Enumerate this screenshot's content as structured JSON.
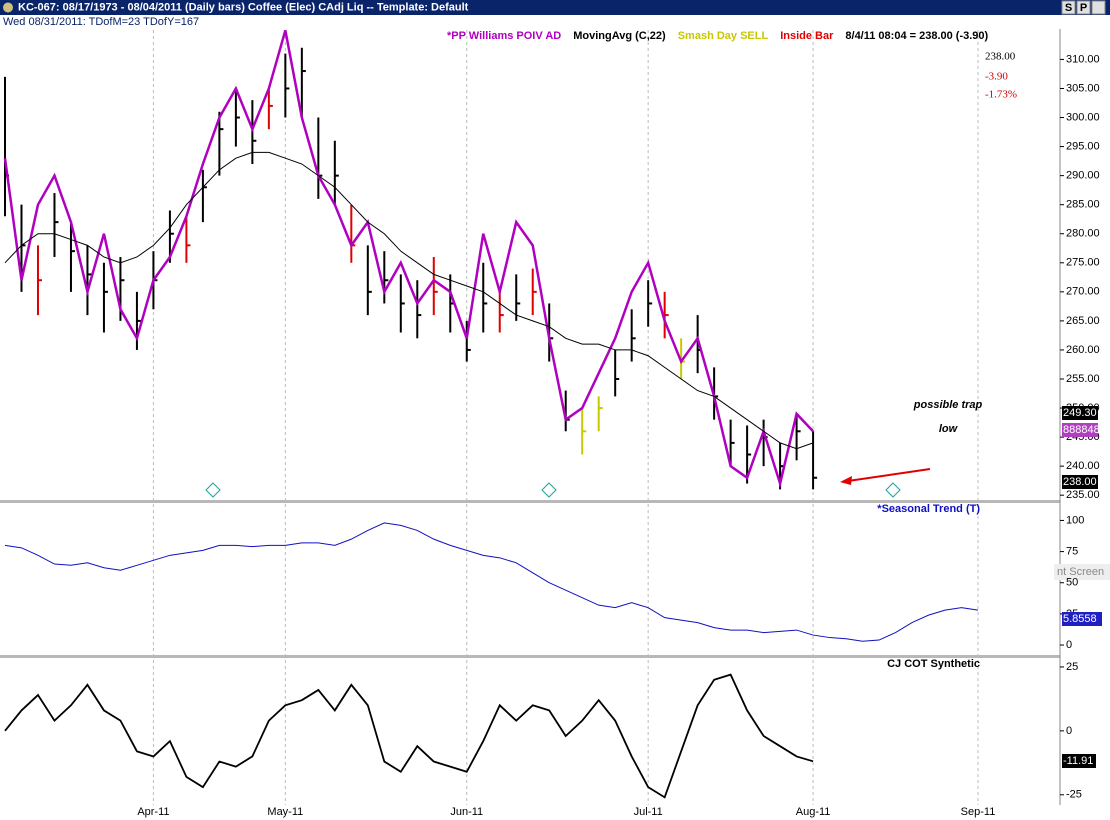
{
  "window": {
    "title": "KC-067:  08/17/1973 - 08/04/2011  (Daily bars)   Coffee (Elec) CAdj Liq  --  Template: Default",
    "status": "Wed 08/31/2011:  TDofM=23  TDofY=167",
    "buttons": [
      "S",
      "P"
    ],
    "overlay_text": "nt Screen"
  },
  "chart_data": [
    {
      "type": "ohlc",
      "legend": [
        "*PP Williams POIV AD",
        "MovingAvg (C,22)",
        "Smash Day SELL",
        "Inside Bar",
        "8/4/11 08:04 = 238.00 (-3.90)"
      ],
      "legend_colors": [
        "#b000c0",
        "#000000",
        "#c8c800",
        "#e00000",
        "#000000"
      ],
      "last": "238.00",
      "change": "-3.90",
      "change_pct": "-1.73%",
      "annotation": "possible trap low",
      "side_labels": [
        "249.30",
        "888848",
        "238.00"
      ],
      "high": [
        307,
        285,
        278,
        287,
        282,
        278,
        275,
        276,
        270,
        277,
        284,
        283,
        291,
        301,
        305,
        303,
        305,
        311,
        312,
        300,
        296,
        285,
        278,
        277,
        273,
        272,
        276,
        273,
        265,
        275,
        270,
        273,
        274,
        268,
        253,
        250,
        252,
        260,
        267,
        272,
        270,
        262,
        266,
        257,
        248,
        247,
        248,
        244,
        249,
        246,
        null,
        null,
        null,
        null,
        null,
        null,
        null,
        null,
        null,
        null
      ],
      "low": [
        283,
        270,
        266,
        276,
        270,
        266,
        263,
        265,
        260,
        267,
        275,
        275,
        282,
        290,
        295,
        292,
        298,
        300,
        300,
        286,
        285,
        275,
        266,
        268,
        263,
        262,
        266,
        263,
        258,
        263,
        263,
        265,
        266,
        258,
        246,
        242,
        246,
        252,
        258,
        264,
        262,
        255,
        256,
        248,
        240,
        237,
        240,
        236,
        241,
        236,
        null,
        null,
        null,
        null,
        null,
        null,
        null,
        null,
        null,
        null
      ],
      "close": [
        290,
        278,
        272,
        282,
        277,
        273,
        270,
        272,
        265,
        272,
        280,
        278,
        288,
        298,
        300,
        296,
        302,
        305,
        308,
        290,
        290,
        278,
        270,
        272,
        268,
        266,
        270,
        268,
        260,
        268,
        266,
        268,
        270,
        262,
        248,
        246,
        250,
        255,
        262,
        268,
        266,
        258,
        260,
        252,
        244,
        242,
        245,
        240,
        246,
        238,
        null,
        null,
        null,
        null,
        null,
        null,
        null,
        null,
        null,
        null
      ],
      "bar_colors": [
        "#000",
        "#000",
        "#e00000",
        "#000",
        "#000",
        "#000",
        "#000",
        "#000",
        "#000",
        "#000",
        "#000",
        "#e00000",
        "#000",
        "#000",
        "#000",
        "#000",
        "#e00000",
        "#000",
        "#000",
        "#000",
        "#000",
        "#e00000",
        "#000",
        "#000",
        "#000",
        "#000",
        "#e00000",
        "#000",
        "#000",
        "#000",
        "#e00000",
        "#000",
        "#e00000",
        "#000",
        "#000",
        "#c8c800",
        "#c8c800",
        "#000",
        "#000",
        "#000",
        "#e00000",
        "#c8c800",
        "#000",
        "#000",
        "#000",
        "#000",
        "#000",
        "#000",
        "#000",
        "#000",
        null,
        null,
        null,
        null,
        null,
        null,
        null,
        null,
        null,
        null
      ],
      "series": [
        {
          "name": "*PP Williams POIV AD",
          "color": "#b000c0",
          "values": [
            293,
            272,
            285,
            290,
            282,
            270,
            280,
            267,
            262,
            272,
            276,
            283,
            292,
            300,
            305,
            298,
            305,
            315,
            300,
            290,
            285,
            278,
            282,
            270,
            275,
            268,
            272,
            270,
            262,
            280,
            270,
            282,
            278,
            262,
            248,
            250,
            256,
            262,
            270,
            275,
            265,
            258,
            262,
            252,
            240,
            238,
            246,
            237,
            249,
            246,
            null,
            null,
            null,
            null,
            null,
            null,
            null,
            null,
            null,
            null
          ]
        },
        {
          "name": "MovingAvg (C,22)",
          "color": "#000000",
          "values": [
            275,
            278,
            280,
            280,
            279,
            278,
            276,
            275,
            276,
            278,
            281,
            285,
            288,
            291,
            293,
            294,
            294,
            293,
            292,
            290,
            288,
            285,
            282,
            280,
            277,
            275,
            273,
            272,
            271,
            270,
            268,
            266,
            265,
            264,
            262,
            261,
            261,
            260,
            260,
            259,
            257,
            255,
            253,
            252,
            250,
            248,
            246,
            244,
            243,
            244,
            null,
            null,
            null,
            null,
            null,
            null,
            null,
            null,
            null,
            null
          ]
        }
      ],
      "ylim": [
        234,
        313
      ],
      "yticks": [
        {
          "value": 235,
          "label": "235.00"
        },
        {
          "value": 240,
          "label": "240.00"
        },
        {
          "value": 245,
          "label": "245.00"
        },
        {
          "value": 250,
          "label": "250.00"
        },
        {
          "value": 255,
          "label": "255.00"
        },
        {
          "value": 260,
          "label": "260.00"
        },
        {
          "value": 265,
          "label": "265.00"
        },
        {
          "value": 270,
          "label": "270.00"
        },
        {
          "value": 275,
          "label": "275.00"
        },
        {
          "value": 280,
          "label": "280.00"
        },
        {
          "value": 285,
          "label": "285.00"
        },
        {
          "value": 290,
          "label": "290.00"
        },
        {
          "value": 295,
          "label": "295.00"
        },
        {
          "value": 300,
          "label": "300.00"
        },
        {
          "value": 305,
          "label": "305.00"
        },
        {
          "value": 310,
          "label": "310.00"
        }
      ]
    },
    {
      "type": "line",
      "title": "*Seasonal Trend (T)",
      "side_label": "5.8558",
      "series": [
        {
          "name": "*Seasonal Trend (T)",
          "color": "#1010c0",
          "values": [
            80,
            78,
            72,
            65,
            64,
            66,
            62,
            60,
            64,
            68,
            72,
            74,
            76,
            80,
            80,
            79,
            80,
            80,
            82,
            82,
            80,
            85,
            92,
            98,
            96,
            92,
            85,
            80,
            76,
            72,
            70,
            66,
            58,
            50,
            44,
            38,
            32,
            30,
            34,
            30,
            22,
            20,
            18,
            14,
            12,
            12,
            10,
            11,
            12,
            8,
            6,
            5,
            3,
            4,
            10,
            18,
            24,
            28,
            30,
            28
          ]
        }
      ],
      "ylim": [
        -8,
        114
      ],
      "yticks": [
        0,
        25,
        50,
        75,
        100
      ]
    },
    {
      "type": "line",
      "title": "CJ COT Synthetic",
      "categories": [
        null,
        null,
        null,
        null,
        null,
        null,
        null,
        null,
        null,
        "Apr-11",
        null,
        null,
        null,
        null,
        null,
        null,
        null,
        "May-11",
        null,
        null,
        null,
        null,
        null,
        null,
        null,
        null,
        null,
        null,
        "Jun-11",
        null,
        null,
        null,
        null,
        null,
        null,
        null,
        null,
        null,
        null,
        "Jul-11",
        null,
        null,
        null,
        null,
        null,
        null,
        null,
        null,
        null,
        "Aug-11",
        null,
        null,
        null,
        null,
        null,
        null,
        null,
        null,
        null,
        "Sep-11"
      ],
      "series": [
        {
          "name": "CJ COT Synthetic",
          "color": "#000000",
          "values": [
            0,
            8,
            14,
            4,
            10,
            18,
            8,
            4,
            -8,
            -10,
            -4,
            -18,
            -22,
            -12,
            -14,
            -10,
            4,
            10,
            12,
            16,
            8,
            18,
            10,
            -12,
            -16,
            -6,
            -12,
            -14,
            -16,
            -4,
            10,
            4,
            10,
            8,
            -2,
            4,
            12,
            4,
            -10,
            -22,
            -26,
            -8,
            10,
            20,
            22,
            8,
            -2,
            -6,
            -10,
            -11.91,
            null,
            null,
            null,
            null,
            null,
            null,
            null,
            null,
            null,
            null
          ]
        }
      ],
      "ylim": [
        -29,
        28.5
      ],
      "yticks": [
        -25,
        0,
        25
      ]
    }
  ]
}
